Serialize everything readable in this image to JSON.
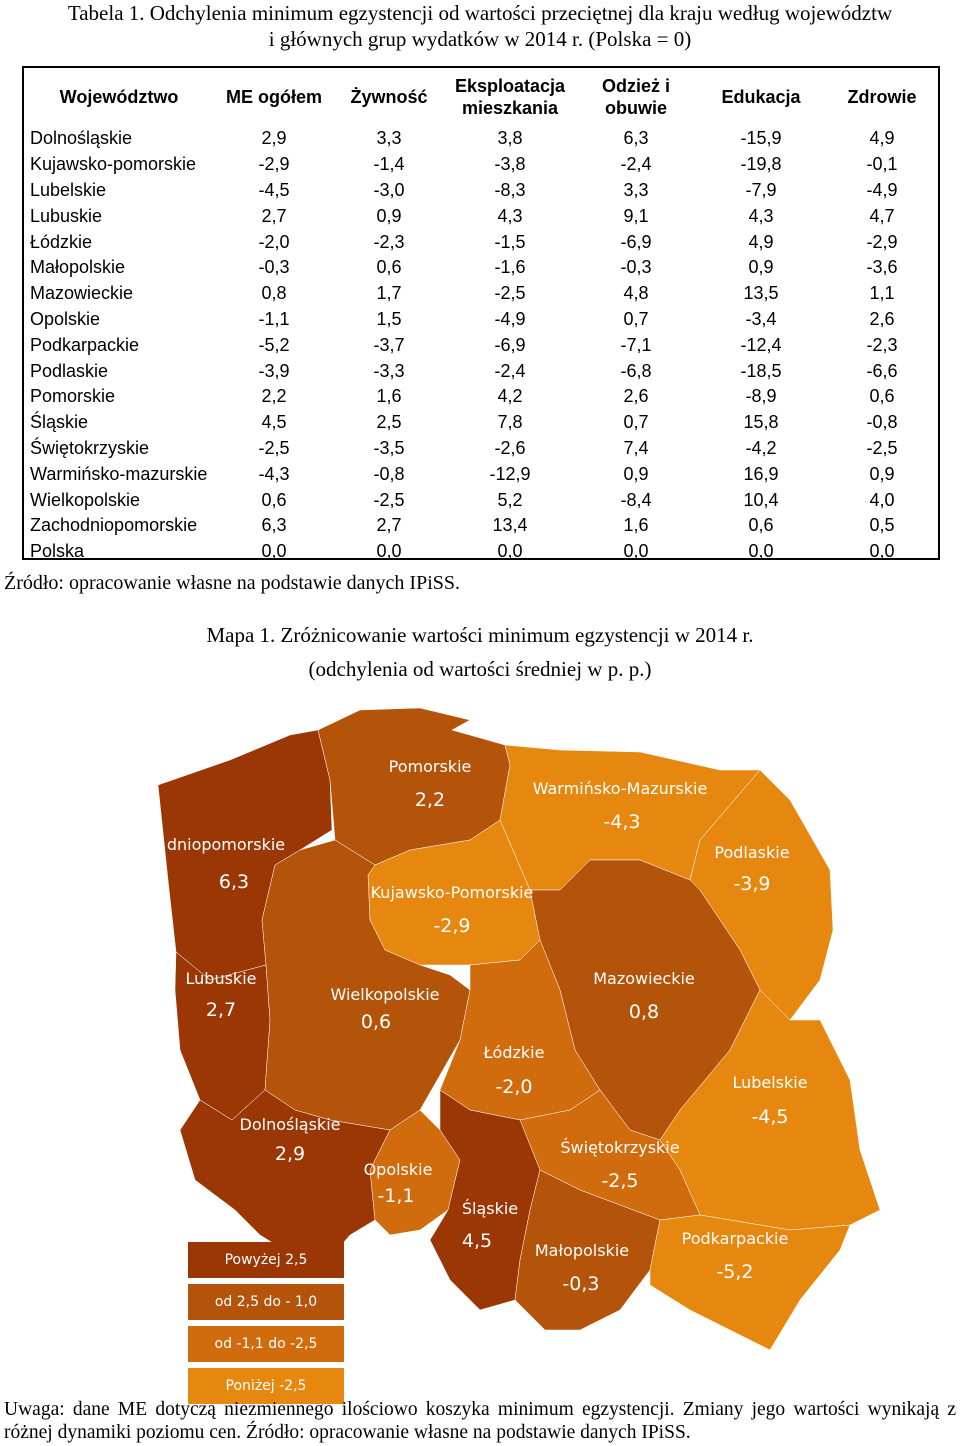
{
  "table": {
    "title_line1": "Tabela 1. Odchylenia minimum egzystencji od wartości przeciętnej dla kraju według województw",
    "title_line2": "i głównych grup wydatków w 2014 r. (Polska = 0)",
    "headers": [
      "Województwo",
      "ME ogółem",
      "Żywność",
      "Eksploatacja mieszkania",
      "Odzież i obuwie",
      "Edukacja",
      "Zdrowie"
    ],
    "rows": [
      {
        "name": "Dolnośląskie",
        "values": [
          "2,9",
          "3,3",
          "3,8",
          "6,3",
          "-15,9",
          "4,9"
        ]
      },
      {
        "name": "Kujawsko-pomorskie",
        "values": [
          "-2,9",
          "-1,4",
          "-3,8",
          "-2,4",
          "-19,8",
          "-0,1"
        ]
      },
      {
        "name": "Lubelskie",
        "values": [
          "-4,5",
          "-3,0",
          "-8,3",
          "3,3",
          "-7,9",
          "-4,9"
        ]
      },
      {
        "name": "Lubuskie",
        "values": [
          "2,7",
          "0,9",
          "4,3",
          "9,1",
          "4,3",
          "4,7"
        ]
      },
      {
        "name": "Łódzkie",
        "values": [
          "-2,0",
          "-2,3",
          "-1,5",
          "-6,9",
          "4,9",
          "-2,9"
        ]
      },
      {
        "name": "Małopolskie",
        "values": [
          "-0,3",
          "0,6",
          "-1,6",
          "-0,3",
          "0,9",
          "-3,6"
        ]
      },
      {
        "name": "Mazowieckie",
        "values": [
          "0,8",
          "1,7",
          "-2,5",
          "4,8",
          "13,5",
          "1,1"
        ]
      },
      {
        "name": "Opolskie",
        "values": [
          "-1,1",
          "1,5",
          "-4,9",
          "0,7",
          "-3,4",
          "2,6"
        ]
      },
      {
        "name": "Podkarpackie",
        "values": [
          "-5,2",
          "-3,7",
          "-6,9",
          "-7,1",
          "-12,4",
          "-2,3"
        ]
      },
      {
        "name": "Podlaskie",
        "values": [
          "-3,9",
          "-3,3",
          "-2,4",
          "-6,8",
          "-18,5",
          "-6,6"
        ]
      },
      {
        "name": "Pomorskie",
        "values": [
          "2,2",
          "1,6",
          "4,2",
          "2,6",
          "-8,9",
          "0,6"
        ]
      },
      {
        "name": "Śląskie",
        "values": [
          "4,5",
          "2,5",
          "7,8",
          "0,7",
          "15,8",
          "-0,8"
        ]
      },
      {
        "name": "Świętokrzyskie",
        "values": [
          "-2,5",
          "-3,5",
          "-2,6",
          "7,4",
          "-4,2",
          "-2,5"
        ]
      },
      {
        "name": "Warmińsko-mazurskie",
        "values": [
          "-4,3",
          "-0,8",
          "-12,9",
          "0,9",
          "16,9",
          "0,9"
        ]
      },
      {
        "name": "Wielkopolskie",
        "values": [
          "0,6",
          "-2,5",
          "5,2",
          "-8,4",
          "10,4",
          "4,0"
        ]
      },
      {
        "name": "Zachodniopomorskie",
        "values": [
          "6,3",
          "2,7",
          "13,4",
          "1,6",
          "0,6",
          "0,5"
        ]
      },
      {
        "name": "Polska",
        "values": [
          "0,0",
          "0,0",
          "0,0",
          "0,0",
          "0,0",
          "0,0"
        ]
      }
    ],
    "source": "Źródło: opracowanie własne na podstawie danych IPiSS."
  },
  "map": {
    "title_line1": "Mapa 1. Zróżnicowanie wartości minimum egzystencji w 2014 r.",
    "title_line2": "(odchylenia od wartości średniej w p. p.)",
    "colors": {
      "above_2_5": "#9a3704",
      "from_2_5_to_-1_0": "#b4530a",
      "from_-1_1_to_-2_5": "#d06b0e",
      "below_-2_5": "#e6880f"
    },
    "regions": {
      "zachodniopomorskie": {
        "name": "dniopomorskie",
        "value": "6,3"
      },
      "pomorskie": {
        "name": "Pomorskie",
        "value": "2,2"
      },
      "warminsko": {
        "name": "Warmińsko-Mazurskie",
        "value": "-4,3"
      },
      "podlaskie": {
        "name": "Podlaskie",
        "value": "-3,9"
      },
      "kujawsko": {
        "name": "Kujawsko-Pomorskie",
        "value": "-2,9"
      },
      "lubuskie": {
        "name": "Lubuskie",
        "value": "2,7"
      },
      "wielkopolskie": {
        "name": "Wielkopolskie",
        "value": "0,6"
      },
      "mazowieckie": {
        "name": "Mazowieckie",
        "value": "0,8"
      },
      "lodzkie": {
        "name": "Łódzkie",
        "value": "-2,0"
      },
      "lubelskie": {
        "name": "Lubelskie",
        "value": "-4,5"
      },
      "dolnoslaskie": {
        "name": "Dolnośląskie",
        "value": "2,9"
      },
      "opolskie": {
        "name": "Opolskie",
        "value": "-1,1"
      },
      "swietokrzyskie": {
        "name": "Świętokrzyskie",
        "value": "-2,5"
      },
      "slaskie": {
        "name": "Śląskie",
        "value": "4,5"
      },
      "malopolskie": {
        "name": "Małopolskie",
        "value": "-0,3"
      },
      "podkarpackie": {
        "name": "Podkarpackie",
        "value": "-5,2"
      }
    },
    "legend": [
      "Powyżej 2,5",
      "od 2,5 do - 1,0",
      "od  -1,1 do -2,5",
      "Poniżej -2,5"
    ]
  },
  "note": "Uwaga: dane ME dotyczą niezmiennego ilościowo koszyka minimum egzystencji. Zmiany jego wartości wynikają z różnej dynamiki poziomu cen. Źródło: opracowanie własne na podstawie danych IPiSS."
}
